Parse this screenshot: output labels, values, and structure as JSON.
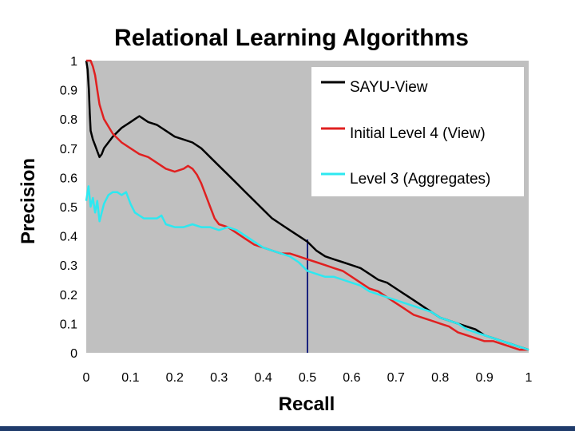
{
  "chart_data": {
    "type": "line",
    "title": "Relational Learning Algorithms",
    "xlabel": "Recall",
    "ylabel": "Precision",
    "xlim": [
      0,
      1
    ],
    "ylim": [
      0,
      1
    ],
    "x_ticks": [
      "0",
      "0.1",
      "0.2",
      "0.3",
      "0.4",
      "0.5",
      "0.6",
      "0.7",
      "0.8",
      "0.9",
      "1"
    ],
    "y_ticks": [
      "0",
      "0.1",
      "0.2",
      "0.3",
      "0.4",
      "0.5",
      "0.6",
      "0.7",
      "0.8",
      "0.9",
      "1"
    ],
    "legend_position": "top-right",
    "background_color": "#c0c0c0",
    "vertical_marker": {
      "x": 0.5,
      "color": "#1a237e"
    },
    "series": [
      {
        "name": "SAYU-View",
        "color": "#000000",
        "points": [
          [
            0.0,
            1.0
          ],
          [
            0.003,
            0.97
          ],
          [
            0.006,
            0.9
          ],
          [
            0.008,
            0.82
          ],
          [
            0.01,
            0.76
          ],
          [
            0.015,
            0.73
          ],
          [
            0.02,
            0.71
          ],
          [
            0.025,
            0.69
          ],
          [
            0.03,
            0.67
          ],
          [
            0.035,
            0.68
          ],
          [
            0.04,
            0.7
          ],
          [
            0.05,
            0.72
          ],
          [
            0.06,
            0.74
          ],
          [
            0.08,
            0.77
          ],
          [
            0.1,
            0.79
          ],
          [
            0.11,
            0.8
          ],
          [
            0.12,
            0.81
          ],
          [
            0.13,
            0.8
          ],
          [
            0.14,
            0.79
          ],
          [
            0.16,
            0.78
          ],
          [
            0.18,
            0.76
          ],
          [
            0.2,
            0.74
          ],
          [
            0.22,
            0.73
          ],
          [
            0.24,
            0.72
          ],
          [
            0.26,
            0.7
          ],
          [
            0.28,
            0.67
          ],
          [
            0.3,
            0.64
          ],
          [
            0.32,
            0.61
          ],
          [
            0.34,
            0.58
          ],
          [
            0.36,
            0.55
          ],
          [
            0.38,
            0.52
          ],
          [
            0.4,
            0.49
          ],
          [
            0.42,
            0.46
          ],
          [
            0.44,
            0.44
          ],
          [
            0.46,
            0.42
          ],
          [
            0.48,
            0.4
          ],
          [
            0.5,
            0.38
          ],
          [
            0.52,
            0.35
          ],
          [
            0.54,
            0.33
          ],
          [
            0.56,
            0.32
          ],
          [
            0.58,
            0.31
          ],
          [
            0.6,
            0.3
          ],
          [
            0.62,
            0.29
          ],
          [
            0.64,
            0.27
          ],
          [
            0.66,
            0.25
          ],
          [
            0.68,
            0.24
          ],
          [
            0.7,
            0.22
          ],
          [
            0.72,
            0.2
          ],
          [
            0.74,
            0.18
          ],
          [
            0.76,
            0.16
          ],
          [
            0.78,
            0.14
          ],
          [
            0.8,
            0.12
          ],
          [
            0.82,
            0.11
          ],
          [
            0.84,
            0.1
          ],
          [
            0.86,
            0.09
          ],
          [
            0.88,
            0.08
          ],
          [
            0.9,
            0.06
          ],
          [
            0.92,
            0.05
          ],
          [
            0.94,
            0.04
          ],
          [
            0.96,
            0.03
          ],
          [
            0.98,
            0.02
          ],
          [
            1.0,
            0.01
          ]
        ]
      },
      {
        "name": "Initial Level 4 (View)",
        "color": "#e02020",
        "points": [
          [
            0.0,
            1.0
          ],
          [
            0.005,
            1.0
          ],
          [
            0.01,
            1.0
          ],
          [
            0.015,
            0.98
          ],
          [
            0.02,
            0.95
          ],
          [
            0.025,
            0.9
          ],
          [
            0.03,
            0.85
          ],
          [
            0.04,
            0.8
          ],
          [
            0.06,
            0.75
          ],
          [
            0.08,
            0.72
          ],
          [
            0.1,
            0.7
          ],
          [
            0.12,
            0.68
          ],
          [
            0.14,
            0.67
          ],
          [
            0.16,
            0.65
          ],
          [
            0.18,
            0.63
          ],
          [
            0.2,
            0.62
          ],
          [
            0.22,
            0.63
          ],
          [
            0.23,
            0.64
          ],
          [
            0.24,
            0.63
          ],
          [
            0.25,
            0.61
          ],
          [
            0.26,
            0.58
          ],
          [
            0.27,
            0.54
          ],
          [
            0.28,
            0.5
          ],
          [
            0.29,
            0.46
          ],
          [
            0.3,
            0.44
          ],
          [
            0.32,
            0.43
          ],
          [
            0.34,
            0.41
          ],
          [
            0.36,
            0.39
          ],
          [
            0.38,
            0.37
          ],
          [
            0.4,
            0.36
          ],
          [
            0.42,
            0.35
          ],
          [
            0.44,
            0.34
          ],
          [
            0.46,
            0.34
          ],
          [
            0.48,
            0.33
          ],
          [
            0.5,
            0.32
          ],
          [
            0.52,
            0.31
          ],
          [
            0.54,
            0.3
          ],
          [
            0.56,
            0.29
          ],
          [
            0.58,
            0.28
          ],
          [
            0.6,
            0.26
          ],
          [
            0.62,
            0.24
          ],
          [
            0.64,
            0.22
          ],
          [
            0.66,
            0.21
          ],
          [
            0.68,
            0.19
          ],
          [
            0.7,
            0.17
          ],
          [
            0.72,
            0.15
          ],
          [
            0.74,
            0.13
          ],
          [
            0.76,
            0.12
          ],
          [
            0.78,
            0.11
          ],
          [
            0.8,
            0.1
          ],
          [
            0.82,
            0.09
          ],
          [
            0.84,
            0.07
          ],
          [
            0.86,
            0.06
          ],
          [
            0.88,
            0.05
          ],
          [
            0.9,
            0.04
          ],
          [
            0.92,
            0.04
          ],
          [
            0.94,
            0.03
          ],
          [
            0.96,
            0.02
          ],
          [
            0.98,
            0.01
          ],
          [
            1.0,
            0.01
          ]
        ]
      },
      {
        "name": "Level 3 (Aggregates)",
        "color": "#2ee8f0",
        "points": [
          [
            0.0,
            0.52
          ],
          [
            0.005,
            0.57
          ],
          [
            0.01,
            0.5
          ],
          [
            0.015,
            0.53
          ],
          [
            0.02,
            0.48
          ],
          [
            0.025,
            0.52
          ],
          [
            0.03,
            0.45
          ],
          [
            0.04,
            0.51
          ],
          [
            0.05,
            0.54
          ],
          [
            0.06,
            0.55
          ],
          [
            0.07,
            0.55
          ],
          [
            0.08,
            0.54
          ],
          [
            0.09,
            0.55
          ],
          [
            0.1,
            0.51
          ],
          [
            0.11,
            0.48
          ],
          [
            0.12,
            0.47
          ],
          [
            0.13,
            0.46
          ],
          [
            0.14,
            0.46
          ],
          [
            0.16,
            0.46
          ],
          [
            0.17,
            0.47
          ],
          [
            0.18,
            0.44
          ],
          [
            0.2,
            0.43
          ],
          [
            0.22,
            0.43
          ],
          [
            0.24,
            0.44
          ],
          [
            0.26,
            0.43
          ],
          [
            0.28,
            0.43
          ],
          [
            0.3,
            0.42
          ],
          [
            0.32,
            0.43
          ],
          [
            0.34,
            0.42
          ],
          [
            0.36,
            0.4
          ],
          [
            0.38,
            0.38
          ],
          [
            0.4,
            0.36
          ],
          [
            0.42,
            0.35
          ],
          [
            0.44,
            0.34
          ],
          [
            0.46,
            0.33
          ],
          [
            0.48,
            0.31
          ],
          [
            0.5,
            0.28
          ],
          [
            0.52,
            0.27
          ],
          [
            0.54,
            0.26
          ],
          [
            0.56,
            0.26
          ],
          [
            0.58,
            0.25
          ],
          [
            0.6,
            0.24
          ],
          [
            0.62,
            0.23
          ],
          [
            0.64,
            0.21
          ],
          [
            0.66,
            0.2
          ],
          [
            0.68,
            0.19
          ],
          [
            0.7,
            0.18
          ],
          [
            0.72,
            0.17
          ],
          [
            0.74,
            0.16
          ],
          [
            0.76,
            0.15
          ],
          [
            0.78,
            0.14
          ],
          [
            0.8,
            0.12
          ],
          [
            0.82,
            0.11
          ],
          [
            0.84,
            0.1
          ],
          [
            0.86,
            0.08
          ],
          [
            0.88,
            0.07
          ],
          [
            0.9,
            0.06
          ],
          [
            0.92,
            0.05
          ],
          [
            0.94,
            0.04
          ],
          [
            0.96,
            0.03
          ],
          [
            0.98,
            0.02
          ],
          [
            1.0,
            0.01
          ]
        ]
      }
    ]
  }
}
